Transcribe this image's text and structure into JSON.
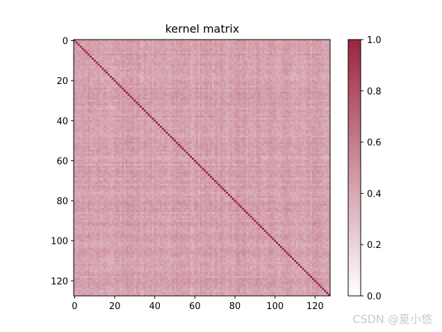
{
  "chart_data": {
    "type": "heatmap",
    "title": "kernel matrix",
    "size": 128,
    "diagonal_value": 1.0,
    "off_diagonal_range": [
      0.3,
      0.55
    ],
    "x_ticks": [
      0,
      20,
      40,
      60,
      80,
      100,
      120
    ],
    "y_ticks": [
      0,
      20,
      40,
      60,
      80,
      100,
      120
    ],
    "colorbar": {
      "range": [
        0.0,
        1.0
      ],
      "ticks": [
        "0.0",
        "0.2",
        "0.4",
        "0.6",
        "0.8",
        "1.0"
      ],
      "color_low": "#ffffff",
      "color_high": "#9b2440"
    }
  },
  "watermark": "CSDN @夏小悠"
}
